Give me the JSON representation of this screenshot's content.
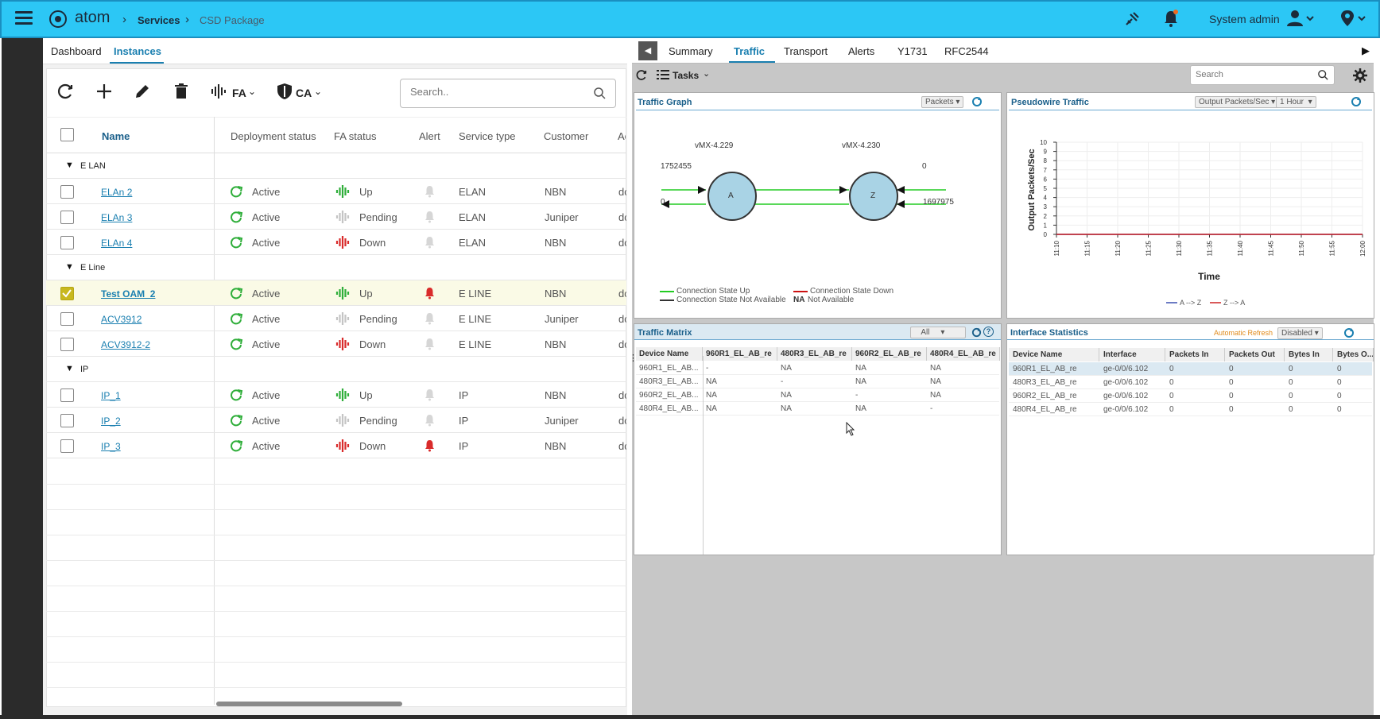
{
  "header": {
    "logo_text": "atom",
    "breadcrumb": [
      "Services",
      "CSD Package"
    ],
    "user_label": "System admin"
  },
  "left_tabs": [
    "Dashboard",
    "Instances"
  ],
  "toolbar": {
    "fa_label": "FA",
    "ca_label": "CA",
    "search_placeholder": "Search.."
  },
  "table": {
    "columns": [
      "Name",
      "Deployment status",
      "FA status",
      "Alert",
      "Service type",
      "Customer",
      "Ac"
    ],
    "groups": [
      {
        "label": "E LAN",
        "rows": [
          {
            "name": "ELAn 2",
            "deploy": "Active",
            "fa": "Up",
            "fa_state": "up",
            "alert": false,
            "type": "ELAN",
            "customer": "NBN",
            "ac": "dc",
            "checked": false
          },
          {
            "name": "ELAn 3",
            "deploy": "Active",
            "fa": "Pending",
            "fa_state": "pending",
            "alert": false,
            "type": "ELAN",
            "customer": "Juniper",
            "ac": "dc",
            "checked": false
          },
          {
            "name": "ELAn 4",
            "deploy": "Active",
            "fa": "Down",
            "fa_state": "down",
            "alert": false,
            "type": "ELAN",
            "customer": "NBN",
            "ac": "dc",
            "checked": false
          }
        ]
      },
      {
        "label": "E Line",
        "rows": [
          {
            "name": "Test OAM_2",
            "deploy": "Active",
            "fa": "Up",
            "fa_state": "up",
            "alert": true,
            "type": "E LINE",
            "customer": "NBN",
            "ac": "dc",
            "checked": true
          },
          {
            "name": "ACV3912",
            "deploy": "Active",
            "fa": "Pending",
            "fa_state": "pending",
            "alert": false,
            "type": "E LINE",
            "customer": "Juniper",
            "ac": "dc",
            "checked": false
          },
          {
            "name": "ACV3912-2",
            "deploy": "Active",
            "fa": "Down",
            "fa_state": "down",
            "alert": false,
            "type": "E LINE",
            "customer": "NBN",
            "ac": "dc",
            "checked": false
          }
        ]
      },
      {
        "label": "IP",
        "rows": [
          {
            "name": "IP_1",
            "deploy": "Active",
            "fa": "Up",
            "fa_state": "up",
            "alert": false,
            "type": "IP",
            "customer": "NBN",
            "ac": "dc",
            "checked": false
          },
          {
            "name": "IP_2",
            "deploy": "Active",
            "fa": "Pending",
            "fa_state": "pending",
            "alert": false,
            "type": "IP",
            "customer": "Juniper",
            "ac": "dc",
            "checked": false
          },
          {
            "name": "IP_3",
            "deploy": "Active",
            "fa": "Down",
            "fa_state": "down",
            "alert": true,
            "type": "IP",
            "customer": "NBN",
            "ac": "dc",
            "checked": false
          }
        ]
      }
    ]
  },
  "right_tabs": [
    "Summary",
    "Traffic",
    "Transport",
    "Alerts",
    "Y1731",
    "RFC2544"
  ],
  "right_toolbar": {
    "tasks_label": "Tasks",
    "search_placeholder": "Search"
  },
  "traffic_graph": {
    "title": "Traffic Graph",
    "select": "Packets",
    "node_a_device": "vMX-4.229",
    "node_z_device": "vMX-4.230",
    "node_a": "A",
    "node_z": "Z",
    "a_in_value": "1752455",
    "a_out_value": "0",
    "z_in_value": "0",
    "z_out_value": "1697975",
    "legend": {
      "up": "Connection State Up",
      "down": "Connection State Down",
      "na": "Connection State Not Available",
      "na_code": "NA",
      "na_text": "Not Available"
    }
  },
  "pseudowire": {
    "title": "Pseudowire Traffic",
    "select_metric": "Output Packets/Sec",
    "select_range": "1 Hour",
    "colors": {
      "a_to_z": "#3b4fb0",
      "z_to_a": "#cc2222"
    }
  },
  "chart_data": {
    "type": "line",
    "title": "",
    "xlabel": "Time",
    "ylabel": "Output Packets/Sec",
    "x": [
      "11:10",
      "11:15",
      "11:20",
      "11:25",
      "11:30",
      "11:35",
      "11:40",
      "11:45",
      "11:50",
      "11:55",
      "12:00"
    ],
    "ylim": [
      0,
      10
    ],
    "yticks": [
      0,
      1,
      2,
      3,
      4,
      5,
      6,
      7,
      8,
      9,
      10
    ],
    "series": [
      {
        "name": "A --> Z",
        "values": [
          0,
          0,
          0,
          0,
          0,
          0,
          0,
          0,
          0,
          0,
          0
        ]
      },
      {
        "name": "Z --> A",
        "values": [
          0,
          0,
          0,
          0,
          0,
          0,
          0,
          0,
          0,
          0,
          0
        ]
      }
    ],
    "grid": true,
    "legend_position": "bottom"
  },
  "traffic_matrix": {
    "title": "Traffic Matrix",
    "select": "All",
    "columns": [
      "Device Name",
      "960R1_EL_AB_re",
      "480R3_EL_AB_re",
      "960R2_EL_AB_re",
      "480R4_EL_AB_re"
    ],
    "rows": [
      [
        "960R1_EL_AB...",
        "-",
        "NA",
        "NA",
        "NA"
      ],
      [
        "480R3_EL_AB...",
        "NA",
        "-",
        "NA",
        "NA"
      ],
      [
        "960R2_EL_AB...",
        "NA",
        "NA",
        "-",
        "NA"
      ],
      [
        "480R4_EL_AB...",
        "NA",
        "NA",
        "NA",
        "-"
      ]
    ]
  },
  "interface_stats": {
    "title": "Interface Statistics",
    "auto_refresh_label": "Automatic Refresh",
    "auto_refresh_value": "Disabled",
    "columns": [
      "Device Name",
      "Interface",
      "Packets In",
      "Packets Out",
      "Bytes In",
      "Bytes O..."
    ],
    "rows": [
      [
        "960R1_EL_AB_re",
        "ge-0/0/6.102",
        "0",
        "0",
        "0",
        "0"
      ],
      [
        "480R3_EL_AB_re",
        "ge-0/0/6.102",
        "0",
        "0",
        "0",
        "0"
      ],
      [
        "960R2_EL_AB_re",
        "ge-0/0/6.102",
        "0",
        "0",
        "0",
        "0"
      ],
      [
        "480R4_EL_AB_re",
        "ge-0/0/6.102",
        "0",
        "0",
        "0",
        "0"
      ]
    ]
  }
}
